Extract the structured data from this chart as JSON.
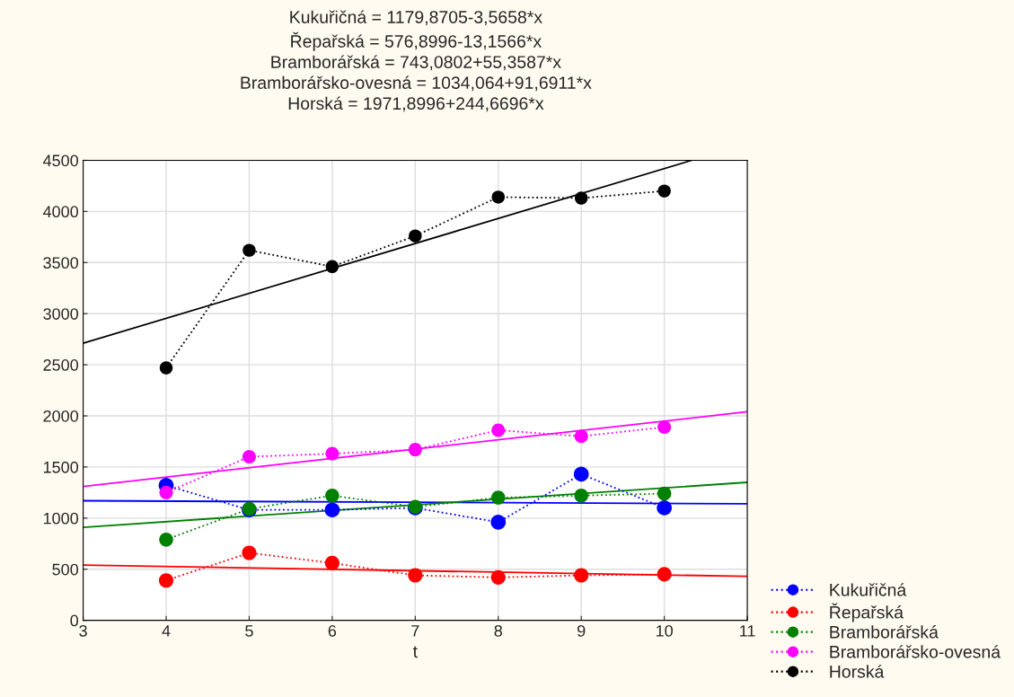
{
  "chart_data": {
    "type": "line",
    "title": "Kukuřičná = 1179,8705-3,5658*x\nŘepařská = 576,8996-13,1566*x\nBramborářská = 743,0802+55,3587*x\nBramborářsko-ovesná = 1034,064+91,6911*x\nHorská = 1971,8996+244,6696*x",
    "xlabel": "t",
    "x": [
      4,
      5,
      6,
      7,
      8,
      9,
      10
    ],
    "series": [
      {
        "name": "Kukuřičná",
        "color": "#0000ff",
        "values": [
          1320,
          1080,
          1080,
          1100,
          960,
          1430,
          1100
        ],
        "marker": "circle",
        "line_style": "dotted"
      },
      {
        "name": "Řepařská",
        "color": "#ff0000",
        "values": [
          390,
          660,
          560,
          440,
          420,
          440,
          450
        ],
        "marker": "circle",
        "line_style": "dotted"
      },
      {
        "name": "Bramborářská",
        "color": "#008000",
        "values": [
          790,
          1090,
          1220,
          1110,
          1200,
          1220,
          1240
        ],
        "marker": "circle",
        "line_style": "dotted"
      },
      {
        "name": "Bramborářsko-ovesná",
        "color": "#ff00ff",
        "values": [
          1250,
          1600,
          1630,
          1670,
          1860,
          1800,
          1890
        ],
        "marker": "circle",
        "line_style": "dotted"
      },
      {
        "name": "Horská",
        "color": "#000000",
        "values": [
          2470,
          3620,
          3460,
          3760,
          4140,
          4130,
          4200
        ],
        "marker": "circle",
        "line_style": "dotted"
      },
      {
        "color": "#0000ff",
        "x": [
          3,
          11
        ],
        "values": [
          1170,
          1140
        ],
        "marker": "none",
        "line_style": "solid"
      },
      {
        "color": "#ff0000",
        "x": [
          3,
          11
        ],
        "values": [
          540,
          430
        ],
        "marker": "none",
        "line_style": "solid"
      },
      {
        "color": "#008000",
        "x": [
          3,
          11
        ],
        "values": [
          910,
          1350
        ],
        "marker": "none",
        "line_style": "solid"
      },
      {
        "color": "#ff00ff",
        "x": [
          3,
          11
        ],
        "values": [
          1310,
          2040
        ],
        "marker": "none",
        "line_style": "solid"
      },
      {
        "color": "#000000",
        "x": [
          3,
          10.33
        ],
        "values": [
          2710,
          4500
        ],
        "marker": "none",
        "line_style": "solid"
      }
    ],
    "xlim": [
      3,
      11
    ],
    "xticks": [
      3,
      4,
      5,
      6,
      7,
      8,
      9,
      10,
      11
    ],
    "ylim": [
      0,
      4500
    ],
    "yticks": [
      0,
      500,
      1000,
      1500,
      2000,
      2500,
      3000,
      3500,
      4000,
      4500
    ],
    "grid": true,
    "legend": "bottom right"
  }
}
